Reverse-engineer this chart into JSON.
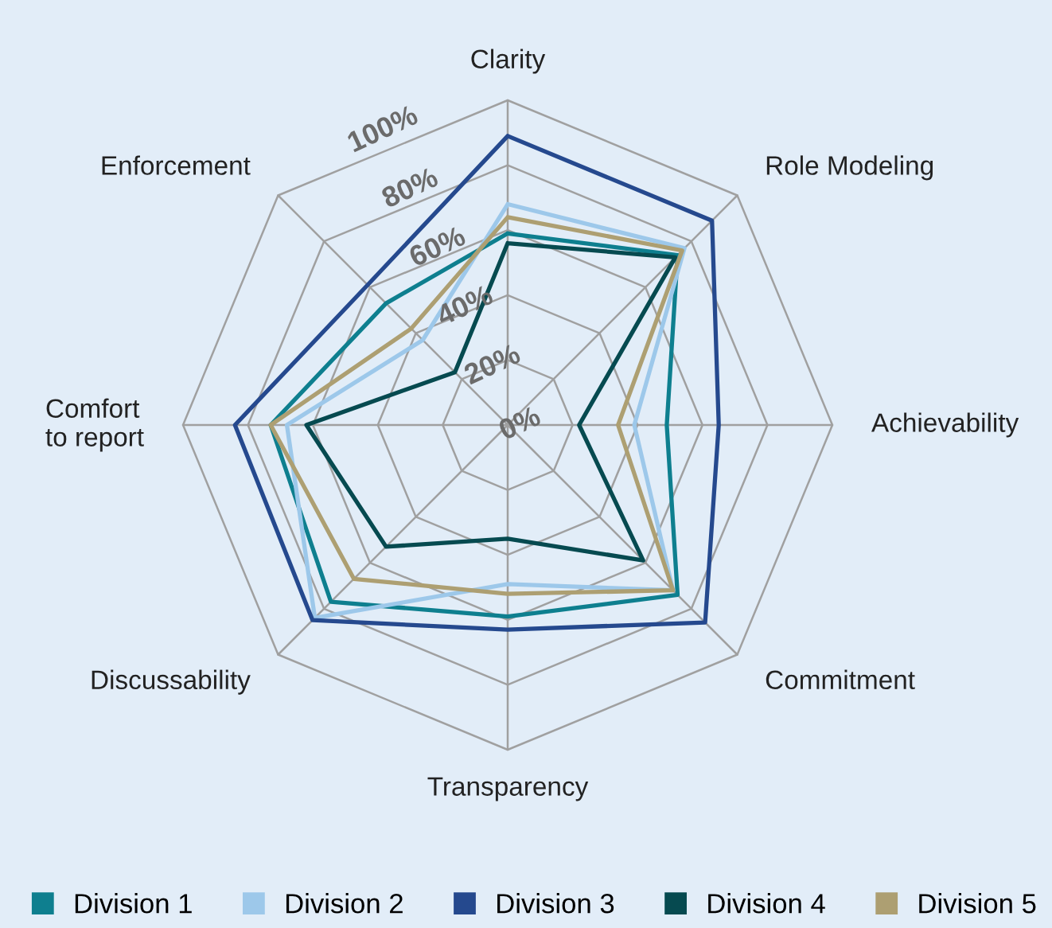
{
  "chart_data": {
    "type": "radar",
    "categories": [
      "Clarity",
      "Role Modeling",
      "Achievability",
      "Commitment",
      "Transparency",
      "Discussability",
      "Comfort\nto report",
      "Enforcement"
    ],
    "ylim": [
      0,
      100
    ],
    "yticks": [
      {
        "value": 0,
        "label": "0%"
      },
      {
        "value": 20,
        "label": "20%"
      },
      {
        "value": 40,
        "label": "40%"
      },
      {
        "value": 60,
        "label": "60%"
      },
      {
        "value": 80,
        "label": "80%"
      },
      {
        "value": 100,
        "label": "100%"
      }
    ],
    "grid": true,
    "legend": "bottom",
    "marker": "none",
    "line_style": "solid",
    "series": [
      {
        "name": "Division 1",
        "color": "#0e7f8f",
        "values": [
          59,
          74,
          49,
          74,
          59,
          77,
          73,
          53
        ]
      },
      {
        "name": "Division 2",
        "color": "#9dc8ea",
        "values": [
          68,
          77,
          39,
          72,
          49,
          84,
          68,
          37
        ]
      },
      {
        "name": "Division 3",
        "color": "#25498e",
        "values": [
          89,
          89,
          65,
          86,
          63,
          85,
          84,
          61
        ]
      },
      {
        "name": "Division 4",
        "color": "#064a50",
        "values": [
          56,
          73,
          22,
          59,
          35,
          53,
          62,
          23
        ]
      },
      {
        "name": "Division 5",
        "color": "#ad9f72",
        "values": [
          64,
          76,
          34,
          72,
          52,
          67,
          73,
          42
        ]
      }
    ]
  }
}
